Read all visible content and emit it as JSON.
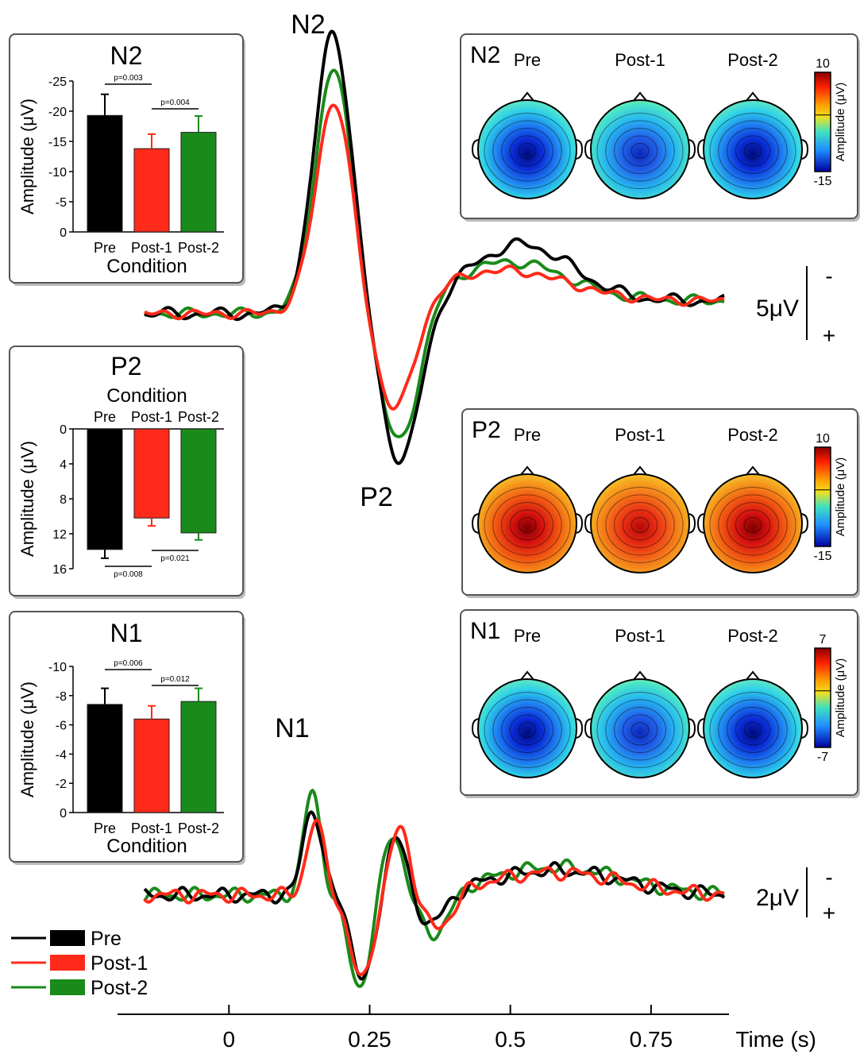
{
  "chart_data": [
    {
      "type": "line",
      "name": "erp-upper",
      "peak_labels": [
        "N2",
        "P2"
      ],
      "scale_label": "5μV",
      "polarity": [
        "-",
        "+"
      ],
      "series": [
        {
          "name": "Pre",
          "color": "#000000"
        },
        {
          "name": "Post-1",
          "color": "#ff2a1a"
        },
        {
          "name": "Post-2",
          "color": "#1a8a1a"
        }
      ]
    },
    {
      "type": "line",
      "name": "erp-lower",
      "peak_labels": [
        "N1"
      ],
      "scale_label": "2μV",
      "polarity": [
        "-",
        "+"
      ],
      "series": [
        {
          "name": "Pre",
          "color": "#000000"
        },
        {
          "name": "Post-1",
          "color": "#ff2a1a"
        },
        {
          "name": "Post-2",
          "color": "#1a8a1a"
        }
      ]
    },
    {
      "type": "bar",
      "title": "N2",
      "categories": [
        "Pre",
        "Post-1",
        "Post-2"
      ],
      "values": [
        -19.3,
        -13.8,
        -16.5
      ],
      "errors": [
        3.5,
        2.4,
        2.7
      ],
      "colors": [
        "#000000",
        "#ff2a1a",
        "#1a8a1a"
      ],
      "ylabel": "Amplitude (μV)",
      "xlabel": "Condition",
      "yticks": [
        "-25",
        "-20",
        "-15",
        "-10",
        "-5",
        "0"
      ],
      "ylim": [
        0,
        -25
      ],
      "significance": [
        {
          "label": "p=0.003",
          "from": "Pre",
          "to": "Post-1"
        },
        {
          "label": "p=0.004",
          "from": "Post-1",
          "to": "Post-2"
        }
      ]
    },
    {
      "type": "bar",
      "title": "P2",
      "categories": [
        "Pre",
        "Post-1",
        "Post-2"
      ],
      "values": [
        13.8,
        10.2,
        11.9
      ],
      "errors": [
        1.0,
        0.9,
        0.8
      ],
      "colors": [
        "#000000",
        "#ff2a1a",
        "#1a8a1a"
      ],
      "ylabel": "Amplitude (μV)",
      "xlabel": "Condition",
      "yticks": [
        "0",
        "4",
        "8",
        "12",
        "16"
      ],
      "ylim": [
        0,
        16
      ],
      "significance": [
        {
          "label": "p=0.008",
          "from": "Pre",
          "to": "Post-1"
        },
        {
          "label": "p=0.021",
          "from": "Post-1",
          "to": "Post-2"
        }
      ]
    },
    {
      "type": "bar",
      "title": "N1",
      "categories": [
        "Pre",
        "Post-1",
        "Post-2"
      ],
      "values": [
        -7.4,
        -6.4,
        -7.6
      ],
      "errors": [
        1.1,
        0.9,
        0.9
      ],
      "colors": [
        "#000000",
        "#ff2a1a",
        "#1a8a1a"
      ],
      "ylabel": "Amplitude (μV)",
      "xlabel": "Condition",
      "yticks": [
        "-10",
        "-8",
        "-6",
        "-4",
        "-2",
        "0"
      ],
      "ylim": [
        0,
        -10
      ],
      "significance": [
        {
          "label": "p=0.006",
          "from": "Pre",
          "to": "Post-1"
        },
        {
          "label": "p=0.012",
          "from": "Post-1",
          "to": "Post-2"
        }
      ]
    },
    {
      "type": "heatmap",
      "title": "N2",
      "maps": [
        "Pre",
        "Post-1",
        "Post-2"
      ],
      "colorbar_label": "Amplitude (μV)",
      "colorbar_range": [
        "10",
        "-15"
      ],
      "polarity": "negative",
      "intensity": [
        1.0,
        0.75,
        0.85
      ]
    },
    {
      "type": "heatmap",
      "title": "P2",
      "maps": [
        "Pre",
        "Post-1",
        "Post-2"
      ],
      "colorbar_label": "Amplitude (μV)",
      "colorbar_range": [
        "10",
        "-15"
      ],
      "polarity": "positive",
      "intensity": [
        1.0,
        0.75,
        0.9
      ]
    },
    {
      "type": "heatmap",
      "title": "N1",
      "maps": [
        "Pre",
        "Post-1",
        "Post-2"
      ],
      "colorbar_label": "Amplitude (μV)",
      "colorbar_range": [
        "7",
        "-7"
      ],
      "polarity": "negative",
      "intensity": [
        0.95,
        0.7,
        0.9
      ]
    }
  ],
  "legend": [
    {
      "name": "Pre",
      "color": "#000000"
    },
    {
      "name": "Post-1",
      "color": "#ff2a1a"
    },
    {
      "name": "Post-2",
      "color": "#1a8a1a"
    }
  ],
  "time_axis": {
    "ticks": [
      "0",
      "0.25",
      "0.5",
      "0.75"
    ],
    "tick_values": [
      0,
      0.25,
      0.5,
      0.75
    ],
    "label": "Time (s)",
    "range": [
      -0.15,
      0.88
    ]
  }
}
